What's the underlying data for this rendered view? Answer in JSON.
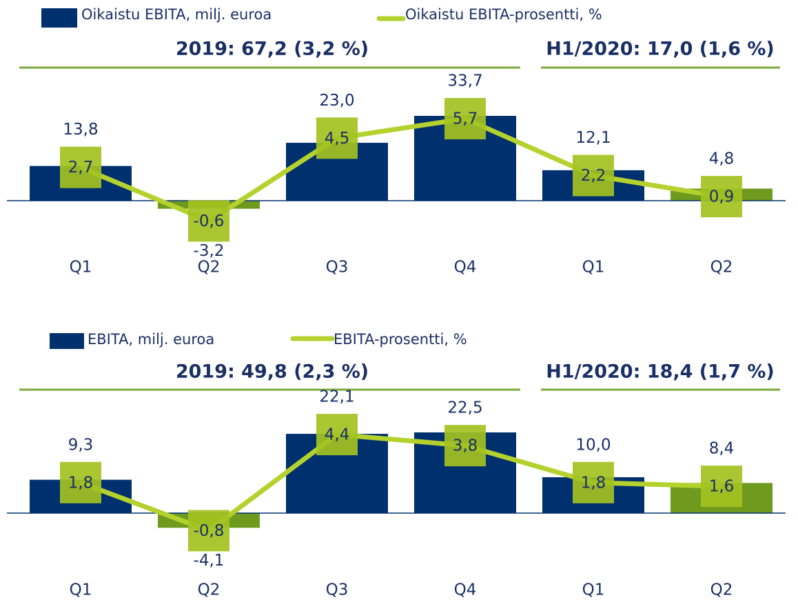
{
  "chart_data": [
    {
      "type": "bar",
      "annotations": [
        "2019: 67,2 (3,2 %)",
        "H1/2020: 17,0 (1,6 %)"
      ],
      "categories": [
        "Q1",
        "Q2",
        "Q3",
        "Q4",
        "Q1",
        "Q2"
      ],
      "series": [
        {
          "name": "Oikaistu EBITA, milj. euroa",
          "colors": [
            "#00306e",
            "#6e9a1e",
            "#00306e",
            "#00306e",
            "#00306e",
            "#6e9a1e"
          ],
          "values": [
            13.8,
            -3.2,
            23.0,
            33.7,
            12.1,
            4.8
          ],
          "value_labels": [
            "13,8",
            "-3,2",
            "23,0",
            "33,7",
            "12,1",
            "4,8"
          ]
        },
        {
          "name": "Oikaistu EBITA-prosentti, %",
          "color": "#b4d12e",
          "marker_color": "#a3c221",
          "axis": "y2",
          "values": [
            2.7,
            -0.6,
            4.5,
            5.7,
            2.2,
            0.9
          ],
          "value_labels": [
            "2,7",
            "-0,6",
            "4,5",
            "5,7",
            "2,2",
            "0,9"
          ]
        }
      ],
      "ylim": [
        -10,
        40
      ],
      "y2lim": [
        -0.9,
        6.85
      ]
    },
    {
      "type": "bar",
      "annotations": [
        "2019: 49,8 (2,3 %)",
        "H1/2020: 18,4 (1,7 %)"
      ],
      "categories": [
        "Q1",
        "Q2",
        "Q3",
        "Q4",
        "Q1",
        "Q2"
      ],
      "series": [
        {
          "name": "EBITA, milj. euroa",
          "colors": [
            "#00306e",
            "#6e9a1e",
            "#00306e",
            "#00306e",
            "#00306e",
            "#6e9a1e"
          ],
          "values": [
            9.3,
            -4.1,
            22.1,
            22.5,
            10.0,
            8.4
          ],
          "value_labels": [
            "9,3",
            "-4,1",
            "22,1",
            "22,5",
            "10,0",
            "8,4"
          ]
        },
        {
          "name": "EBITA-prosentti, %",
          "color": "#b4d12e",
          "marker_color": "#a3c221",
          "axis": "y2",
          "values": [
            1.8,
            -0.8,
            4.4,
            3.8,
            1.8,
            1.6
          ],
          "value_labels": [
            "1,8",
            "-0,8",
            "4,4",
            "3,8",
            "1,8",
            "1,6"
          ]
        }
      ],
      "ylim": [
        -5,
        25
      ],
      "y2lim": [
        -0.82,
        5.0
      ]
    }
  ]
}
